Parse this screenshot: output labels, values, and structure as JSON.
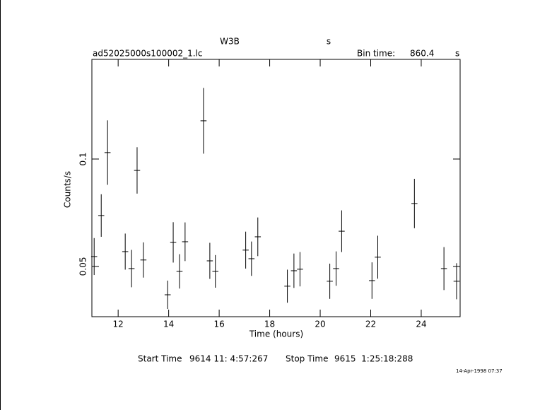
{
  "chart_data": {
    "type": "errorbar",
    "title": "W3B",
    "title_unit": "s",
    "subtitle": "ad52025000s100002_1.lc",
    "bin_time_label": "Bin time:",
    "bin_time": "860.4",
    "bin_time_unit": "s",
    "xlabel": "Time (hours)",
    "ylabel": "Counts/s",
    "start_time_label": "Start Time",
    "start_time": "9614 11: 4:57:267",
    "stop_time_label": "Stop Time",
    "stop_time": "9615  1:25:18:288",
    "timestamp": "14-Apr-1998 07:37",
    "x": [
      11.05,
      11.33,
      11.58,
      12.28,
      12.53,
      12.75,
      13.0,
      13.96,
      14.18,
      14.43,
      14.65,
      15.38,
      15.63,
      15.85,
      17.05,
      17.28,
      17.53,
      18.7,
      18.96,
      19.2,
      20.38,
      20.63,
      20.85,
      22.05,
      22.28,
      23.73,
      24.9,
      25.4
    ],
    "values": [
      0.0546,
      0.0737,
      0.103,
      0.0569,
      0.049,
      0.0947,
      0.053,
      0.0368,
      0.0612,
      0.0477,
      0.0615,
      0.1178,
      0.0526,
      0.0477,
      0.0576,
      0.0536,
      0.0638,
      0.0408,
      0.048,
      0.0487,
      0.0431,
      0.049,
      0.0664,
      0.0434,
      0.0543,
      0.0793,
      0.049,
      0.0431
    ],
    "errors": [
      0.0086,
      0.0099,
      0.015,
      0.0084,
      0.0087,
      0.0108,
      0.0082,
      0.0066,
      0.0094,
      0.008,
      0.009,
      0.0153,
      0.0084,
      0.0076,
      0.0086,
      0.008,
      0.009,
      0.0077,
      0.008,
      0.008,
      0.0082,
      0.008,
      0.0097,
      0.0085,
      0.01,
      0.0115,
      0.01,
      0.0084
    ],
    "xerr": 0.12,
    "color": "#000000",
    "xlim": [
      10.96,
      25.54
    ],
    "ylim": [
      0.0266,
      0.1464
    ],
    "xticks": [
      12,
      14,
      16,
      18,
      20,
      22,
      24
    ],
    "yticks": [
      0.05,
      0.1
    ]
  }
}
